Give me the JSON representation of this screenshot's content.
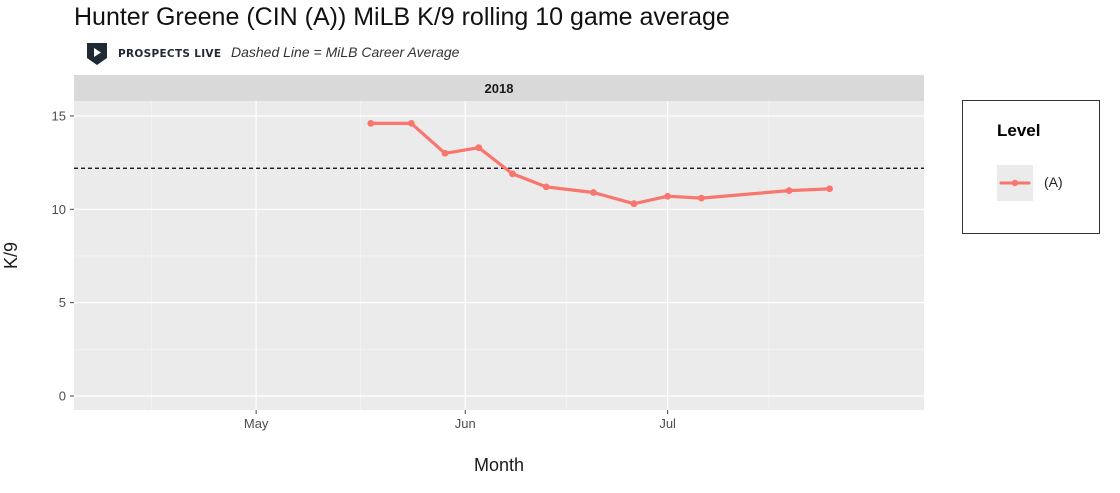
{
  "header": {
    "title": "Hunter Greene (CIN (A)) MiLB K/9 rolling 10 game average",
    "brand": "PROSPECTS LIVE",
    "subtitle": "Dashed Line = MiLB Career Average"
  },
  "legend": {
    "title": "Level",
    "items": [
      {
        "label": "(A)",
        "color": "#f8766d"
      }
    ]
  },
  "chart_data": {
    "type": "line",
    "facet_label": "2018",
    "xlabel": "Month",
    "ylabel": "K/9",
    "xlim": [
      "2018-04-04",
      "2018-08-08"
    ],
    "ylim": [
      -0.75,
      15.8
    ],
    "x_ticks": [
      {
        "label": "May",
        "date": "2018-05-01"
      },
      {
        "label": "Jun",
        "date": "2018-06-01"
      },
      {
        "label": "Jul",
        "date": "2018-07-01"
      }
    ],
    "y_ticks": [
      0,
      5,
      10,
      15
    ],
    "grid": true,
    "legend_position": "right",
    "reference_line": {
      "value": 12.2,
      "style": "dashed",
      "color": "#000000"
    },
    "series": [
      {
        "name": "(A)",
        "color": "#f8766d",
        "x": [
          "2018-05-18",
          "2018-05-24",
          "2018-05-29",
          "2018-06-03",
          "2018-06-08",
          "2018-06-13",
          "2018-06-20",
          "2018-06-26",
          "2018-07-01",
          "2018-07-06",
          "2018-07-19",
          "2018-07-25"
        ],
        "values": [
          14.6,
          14.6,
          13.0,
          13.3,
          11.9,
          11.2,
          10.9,
          10.3,
          10.7,
          10.6,
          11.0,
          11.1
        ]
      }
    ]
  }
}
